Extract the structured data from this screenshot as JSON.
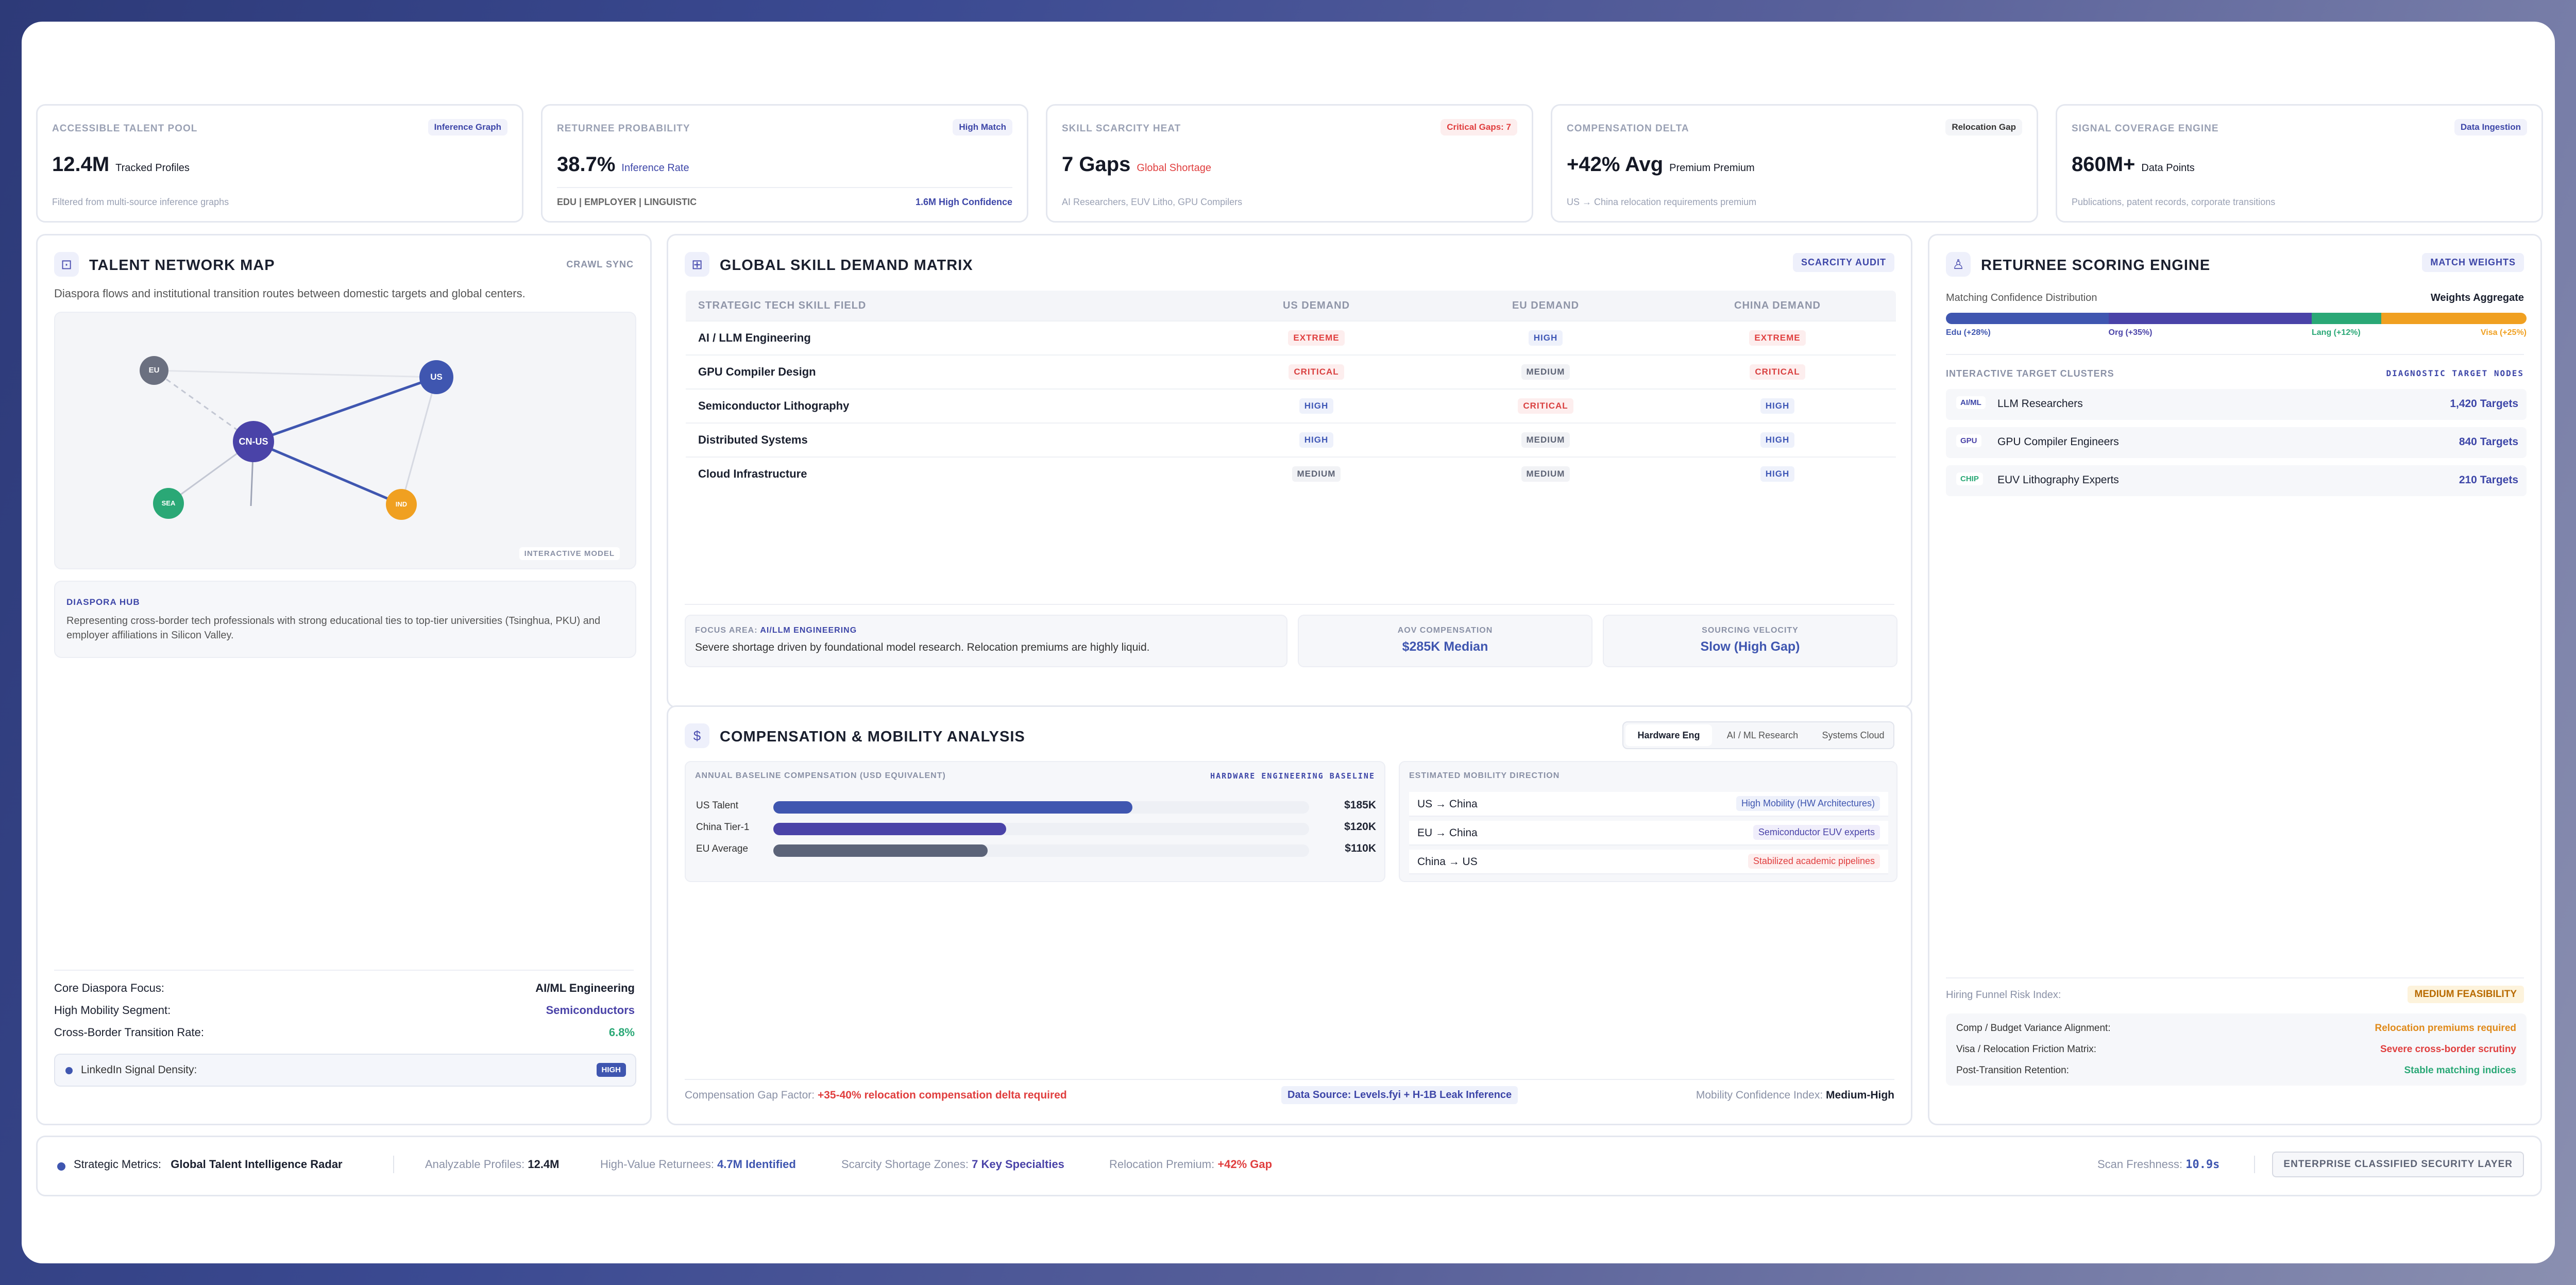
{
  "kpis": [
    {
      "label": "ACCESSIBLE TALENT POOL",
      "tag": "Inference Graph",
      "value": "12.4M",
      "sub": "Tracked Profiles",
      "foot": "Filtered from multi-source inference graphs"
    },
    {
      "label": "RETURNEE PROBABILITY",
      "tag": "High Match",
      "value": "38.7%",
      "sub": "Inference Rate",
      "foot_left": "EDU | EMPLOYER | LINGUISTIC",
      "foot_right": "1.6M High Confidence"
    },
    {
      "label": "SKILL SCARCITY HEAT",
      "tag": "Critical Gaps: 7",
      "value": "7 Gaps",
      "sub": "Global Shortage",
      "foot": "AI Researchers, EUV Litho, GPU Compilers"
    },
    {
      "label": "COMPENSATION DELTA",
      "tag": "Relocation Gap",
      "value": "+42% Avg",
      "sub": "Premium Premium",
      "foot": "US → China relocation requirements premium"
    },
    {
      "label": "SIGNAL COVERAGE ENGINE",
      "tag": "Data Ingestion",
      "value": "860M+",
      "sub": "Data Points",
      "foot": "Publications, patent records, corporate transitions"
    }
  ],
  "network": {
    "title": "TALENT NETWORK MAP",
    "badge": "CRAWL SYNC",
    "desc": "Diaspora flows and institutional transition routes between domestic targets and global centers.",
    "nodes": {
      "eu": "EU",
      "us": "US",
      "cnus": "CN-US",
      "sea": "SEA",
      "ind": "IND"
    },
    "model_label": "INTERACTIVE MODEL",
    "hub_title": "DIASPORA HUB",
    "hub_text": "Representing cross-border tech professionals with strong educational ties to top-tier universities (Tsinghua, PKU) and employer affiliations in Silicon Valley.",
    "stats": [
      {
        "label": "Core Diaspora Focus:",
        "value": "AI/ML Engineering"
      },
      {
        "label": "High Mobility Segment:",
        "value": "Semiconductors"
      },
      {
        "label": "Cross-Border Transition Rate:",
        "value": "6.8%"
      }
    ],
    "signal_label": "LinkedIn Signal Density:",
    "signal_value": "HIGH"
  },
  "matrix": {
    "title": "GLOBAL SKILL DEMAND MATRIX",
    "action": "SCARCITY AUDIT",
    "headers": [
      "STRATEGIC TECH SKILL FIELD",
      "US DEMAND",
      "EU DEMAND",
      "CHINA DEMAND"
    ],
    "rows": [
      {
        "skill": "AI / LLM Engineering",
        "us": "EXTREME",
        "eu": "HIGH",
        "cn": "EXTREME"
      },
      {
        "skill": "GPU Compiler Design",
        "us": "CRITICAL",
        "eu": "MEDIUM",
        "cn": "CRITICAL"
      },
      {
        "skill": "Semiconductor Lithography",
        "us": "HIGH",
        "eu": "CRITICAL",
        "cn": "HIGH"
      },
      {
        "skill": "Distributed Systems",
        "us": "HIGH",
        "eu": "MEDIUM",
        "cn": "HIGH"
      },
      {
        "skill": "Cloud Infrastructure",
        "us": "MEDIUM",
        "eu": "MEDIUM",
        "cn": "HIGH"
      }
    ],
    "focus_label": "FOCUS AREA:",
    "focus_value": "AI/LLM ENGINEERING",
    "focus_text": "Severe shortage driven by foundational model research. Relocation premiums are highly liquid.",
    "aov_label": "AOV COMPENSATION",
    "aov_value": "$285K Median",
    "vel_label": "SOURCING VELOCITY",
    "vel_value": "Slow (High Gap)"
  },
  "comp": {
    "title": "COMPENSATION & MOBILITY ANALYSIS",
    "tabs": [
      "Hardware Eng",
      "AI / ML Research",
      "Systems Cloud"
    ],
    "baseline_label": "ANNUAL BASELINE COMPENSATION (USD EQUIVALENT)",
    "baseline_tag": "HARDWARE ENGINEERING BASELINE",
    "bars": [
      {
        "label": "US Talent",
        "value": "$185K",
        "fraction": 0.67,
        "color": "#3f56b0"
      },
      {
        "label": "China Tier-1",
        "value": "$120K",
        "fraction": 0.435,
        "color": "#4a43a8"
      },
      {
        "label": "EU Average",
        "value": "$110K",
        "fraction": 0.4,
        "color": "#5b6378"
      }
    ],
    "mobility_label": "ESTIMATED MOBILITY DIRECTION",
    "mobility": [
      {
        "route": "US → China",
        "note": "High Mobility (HW Architectures)",
        "tone": "blue"
      },
      {
        "route": "EU → China",
        "note": "Semiconductor EUV experts",
        "tone": "purple"
      },
      {
        "route": "China → US",
        "note": "Stabilized academic pipelines",
        "tone": "red"
      }
    ],
    "gap_label": "Compensation Gap Factor:",
    "gap_value": "+35-40% relocation compensation delta required",
    "source": "Data Source: Levels.fyi + H-1B Leak Inference",
    "confidence_label": "Mobility Confidence Index:",
    "confidence_value": "Medium-High"
  },
  "returnee": {
    "title": "RETURNEE SCORING ENGINE",
    "action": "MATCH WEIGHTS",
    "dist_label": "Matching Confidence Distribution",
    "dist_right": "Weights Aggregate",
    "segments": [
      {
        "label": "Edu (+28%)",
        "fraction": 0.28,
        "color": "#3f56b0"
      },
      {
        "label": "Org (+35%)",
        "fraction": 0.35,
        "color": "#4a43a8"
      },
      {
        "label": "Lang (+12%)",
        "fraction": 0.12,
        "color": "#2aa876"
      },
      {
        "label": "Visa (+25%)",
        "fraction": 0.25,
        "color": "#f0a021"
      }
    ],
    "clusters_label": "INTERACTIVE TARGET CLUSTERS",
    "clusters_right": "DIAGNOSTIC TARGET NODES",
    "clusters": [
      {
        "tag": "AI/ML",
        "name": "LLM Researchers",
        "count": "1,420 Targets"
      },
      {
        "tag": "GPU",
        "name": "GPU Compiler Engineers",
        "count": "840 Targets"
      },
      {
        "tag": "CHIP",
        "name": "EUV Lithography Experts",
        "count": "210 Targets"
      }
    ],
    "risk_label": "Hiring Funnel Risk Index:",
    "risk_value": "MEDIUM FEASIBILITY",
    "risks": [
      {
        "label": "Comp / Budget Variance Alignment:",
        "value": "Relocation premiums required",
        "color": "#e08a1a"
      },
      {
        "label": "Visa / Relocation Friction Matrix:",
        "value": "Severe cross-border scrutiny",
        "color": "#e03e3e"
      },
      {
        "label": "Post-Transition Retention:",
        "value": "Stable matching indices",
        "color": "#2aa876"
      }
    ]
  },
  "footer": {
    "strategic_label": "Strategic Metrics:",
    "strategic_value": "Global Talent Intelligence Radar",
    "profiles_label": "Analyzable Profiles:",
    "profiles_value": "12.4M",
    "returnees_label": "High-Value Returnees:",
    "returnees_value": "4.7M Identified",
    "scarcity_label": "Scarcity Shortage Zones:",
    "scarcity_value": "7 Key Specialties",
    "premium_label": "Relocation Premium:",
    "premium_value": "+42% Gap",
    "fresh_label": "Scan Freshness:",
    "fresh_value": "10.9s",
    "security": "ENTERPRISE CLASSIFIED SECURITY LAYER"
  }
}
